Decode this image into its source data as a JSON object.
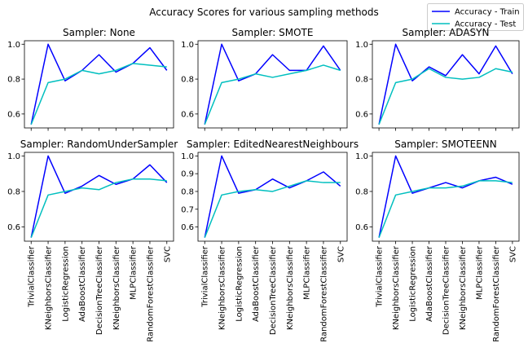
{
  "figure": {
    "suptitle": "Accuracy Scores for various sampling methods"
  },
  "legend": {
    "placement": "top-right",
    "items": [
      {
        "label": "Accuracy - Train",
        "color": "#0000ff"
      },
      {
        "label": "Accuracy - Test",
        "color": "#00bfbf"
      }
    ]
  },
  "chart_data": [
    {
      "type": "line",
      "title": "Sampler: None",
      "categories": [
        "TrivialClassifier",
        "KNeighborsClassifier",
        "LogisticRegression",
        "AdaBoostClassifier",
        "DecisionTreeClassifier",
        "KNeighborsClassifier",
        "MLPClassifier",
        "RandomForestClassifier",
        "SVC"
      ],
      "yticks": [
        0.6,
        0.8,
        1.0
      ],
      "ylim": [
        0.52,
        1.02
      ],
      "grid": false,
      "series": [
        {
          "name": "Accuracy - Train",
          "color": "#0000ff",
          "values": [
            0.54,
            1.0,
            0.79,
            0.85,
            0.94,
            0.84,
            0.89,
            0.98,
            0.85
          ]
        },
        {
          "name": "Accuracy - Test",
          "color": "#00bfbf",
          "values": [
            0.54,
            0.78,
            0.8,
            0.85,
            0.83,
            0.85,
            0.89,
            0.88,
            0.87
          ]
        }
      ]
    },
    {
      "type": "line",
      "title": "Sampler: SMOTE",
      "categories": [
        "TrivialClassifier",
        "KNeighborsClassifier",
        "LogisticRegression",
        "AdaBoostClassifier",
        "DecisionTreeClassifier",
        "KNeighborsClassifier",
        "MLPClassifier",
        "RandomForestClassifier",
        "SVC"
      ],
      "yticks": [
        0.6,
        0.8,
        1.0
      ],
      "ylim": [
        0.52,
        1.02
      ],
      "grid": false,
      "series": [
        {
          "name": "Accuracy - Train",
          "color": "#0000ff",
          "values": [
            0.54,
            1.0,
            0.79,
            0.83,
            0.94,
            0.85,
            0.85,
            0.99,
            0.85
          ]
        },
        {
          "name": "Accuracy - Test",
          "color": "#00bfbf",
          "values": [
            0.54,
            0.78,
            0.8,
            0.83,
            0.81,
            0.83,
            0.85,
            0.88,
            0.85
          ]
        }
      ]
    },
    {
      "type": "line",
      "title": "Sampler: ADASYN",
      "categories": [
        "TrivialClassifier",
        "KNeighborsClassifier",
        "LogisticRegression",
        "AdaBoostClassifier",
        "DecisionTreeClassifier",
        "KNeighborsClassifier",
        "MLPClassifier",
        "RandomForestClassifier",
        "SVC"
      ],
      "yticks": [
        0.6,
        0.8,
        1.0
      ],
      "ylim": [
        0.52,
        1.02
      ],
      "grid": false,
      "series": [
        {
          "name": "Accuracy - Train",
          "color": "#0000ff",
          "values": [
            0.54,
            1.0,
            0.79,
            0.87,
            0.82,
            0.94,
            0.83,
            0.99,
            0.83
          ]
        },
        {
          "name": "Accuracy - Test",
          "color": "#00bfbf",
          "values": [
            0.54,
            0.78,
            0.8,
            0.86,
            0.81,
            0.8,
            0.81,
            0.86,
            0.84
          ]
        }
      ]
    },
    {
      "type": "line",
      "title": "Sampler: RandomUnderSampler",
      "categories": [
        "TrivialClassifier",
        "KNeighborsClassifier",
        "LogisticRegression",
        "AdaBoostClassifier",
        "DecisionTreeClassifier",
        "KNeighborsClassifier",
        "MLPClassifier",
        "RandomForestClassifier",
        "SVC"
      ],
      "yticks": [
        0.6,
        0.8,
        1.0
      ],
      "ylim": [
        0.52,
        1.02
      ],
      "grid": false,
      "series": [
        {
          "name": "Accuracy - Train",
          "color": "#0000ff",
          "values": [
            0.54,
            1.0,
            0.79,
            0.83,
            0.89,
            0.84,
            0.87,
            0.95,
            0.85
          ]
        },
        {
          "name": "Accuracy - Test",
          "color": "#00bfbf",
          "values": [
            0.54,
            0.78,
            0.8,
            0.82,
            0.81,
            0.85,
            0.87,
            0.87,
            0.86
          ]
        }
      ]
    },
    {
      "type": "line",
      "title": "Sampler: EditedNearestNeighbours",
      "categories": [
        "TrivialClassifier",
        "KNeighborsClassifier",
        "LogisticRegression",
        "AdaBoostClassifier",
        "DecisionTreeClassifier",
        "KNeighborsClassifier",
        "MLPClassifier",
        "RandomForestClassifier",
        "SVC"
      ],
      "yticks": [
        0.6,
        0.7,
        0.8,
        0.9,
        1.0
      ],
      "ylim": [
        0.52,
        1.02
      ],
      "grid": false,
      "series": [
        {
          "name": "Accuracy - Train",
          "color": "#0000ff",
          "values": [
            0.54,
            1.0,
            0.79,
            0.81,
            0.87,
            0.82,
            0.86,
            0.91,
            0.83
          ]
        },
        {
          "name": "Accuracy - Test",
          "color": "#00bfbf",
          "values": [
            0.54,
            0.78,
            0.8,
            0.81,
            0.8,
            0.83,
            0.86,
            0.85,
            0.85
          ]
        }
      ]
    },
    {
      "type": "line",
      "title": "Sampler: SMOTEENN",
      "categories": [
        "TrivialClassifier",
        "KNeighborsClassifier",
        "LogisticRegression",
        "AdaBoostClassifier",
        "DecisionTreeClassifier",
        "KNeighborsClassifier",
        "MLPClassifier",
        "RandomForestClassifier",
        "SVC"
      ],
      "yticks": [
        0.6,
        0.8,
        1.0
      ],
      "ylim": [
        0.52,
        1.02
      ],
      "grid": false,
      "series": [
        {
          "name": "Accuracy - Train",
          "color": "#0000ff",
          "values": [
            0.54,
            1.0,
            0.79,
            0.82,
            0.85,
            0.82,
            0.86,
            0.88,
            0.84
          ]
        },
        {
          "name": "Accuracy - Test",
          "color": "#00bfbf",
          "values": [
            0.54,
            0.78,
            0.8,
            0.82,
            0.82,
            0.83,
            0.86,
            0.86,
            0.85
          ]
        }
      ]
    }
  ]
}
